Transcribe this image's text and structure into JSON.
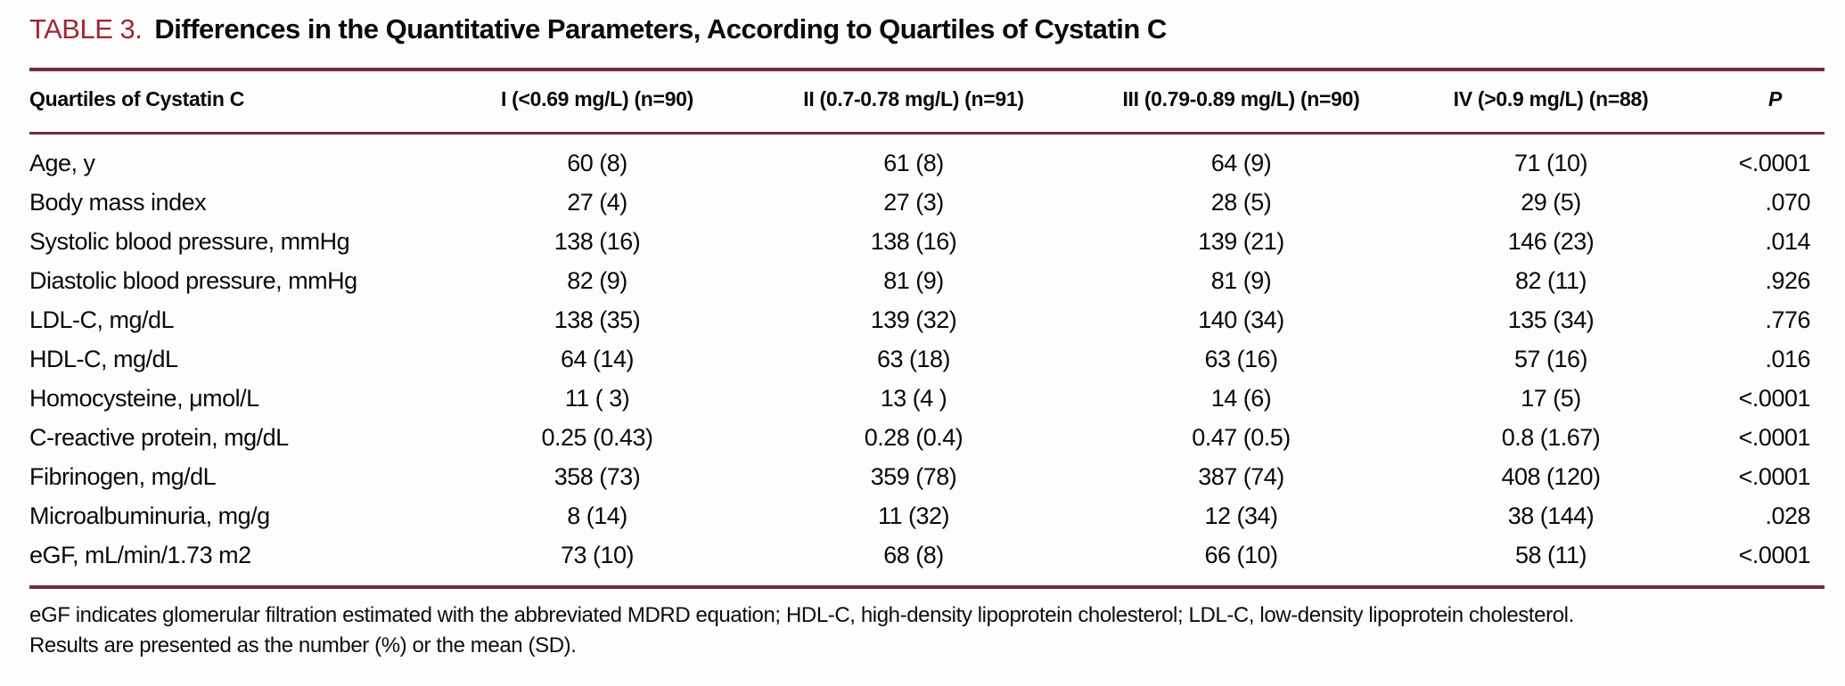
{
  "colors": {
    "accent": "#A32638",
    "rule": "#722B3A"
  },
  "caption": {
    "number": "TABLE 3.",
    "title": "Differences in the Quantitative Parameters, According to Quartiles of Cystatin C"
  },
  "table": {
    "columns": [
      "Quartiles of Cystatin C",
      "I (<0.69 mg/L) (n=90)",
      "II (0.7-0.78 mg/L) (n=91)",
      "III (0.79-0.89 mg/L) (n=90)",
      "IV (>0.9 mg/L) (n=88)",
      "P"
    ],
    "rows": [
      {
        "label": "Age, y",
        "values": [
          "60 (8)",
          "61 (8)",
          "64 (9)",
          "71 (10)",
          "<.0001"
        ]
      },
      {
        "label": "Body mass index",
        "values": [
          "27 (4)",
          "27 (3)",
          "28 (5)",
          "29 (5)",
          ".070"
        ]
      },
      {
        "label": "Systolic blood pressure, mmHg",
        "values": [
          "138 (16)",
          "138 (16)",
          "139 (21)",
          "146 (23)",
          ".014"
        ]
      },
      {
        "label": "Diastolic blood pressure, mmHg",
        "values": [
          "82 (9)",
          "81 (9)",
          "81 (9)",
          "82 (11)",
          ".926"
        ]
      },
      {
        "label": "LDL-C, mg/dL",
        "values": [
          "138 (35)",
          "139 (32)",
          "140 (34)",
          "135 (34)",
          ".776"
        ]
      },
      {
        "label": "HDL-C, mg/dL",
        "values": [
          "64 (14)",
          "63 (18)",
          "63 (16)",
          "57 (16)",
          ".016"
        ]
      },
      {
        "label": "Homocysteine, μmol/L",
        "values": [
          "11 ( 3)",
          "13 (4 )",
          "14 (6)",
          "17 (5)",
          "<.0001"
        ]
      },
      {
        "label": "C-reactive protein, mg/dL",
        "values": [
          "0.25 (0.43)",
          "0.28 (0.4)",
          "0.47 (0.5)",
          "0.8 (1.67)",
          "<.0001"
        ]
      },
      {
        "label": "Fibrinogen, mg/dL",
        "values": [
          "358 (73)",
          "359 (78)",
          "387 (74)",
          "408 (120)",
          "<.0001"
        ]
      },
      {
        "label": "Microalbuminuria, mg/g",
        "values": [
          "8 (14)",
          "11 (32)",
          "12 (34)",
          "38 (144)",
          ".028"
        ]
      },
      {
        "label": "eGF, mL/min/1.73 m2",
        "values": [
          "73 (10)",
          "68 (8)",
          "66 (10)",
          "58 (11)",
          "<.0001"
        ]
      }
    ]
  },
  "footnote": {
    "line1": "eGF indicates glomerular filtration estimated with the abbreviated MDRD equation; HDL-C, high-density lipoprotein cholesterol; LDL-C, low-density lipoprotein cholesterol.",
    "line2": "Results are presented as the number (%) or the mean (SD)."
  }
}
